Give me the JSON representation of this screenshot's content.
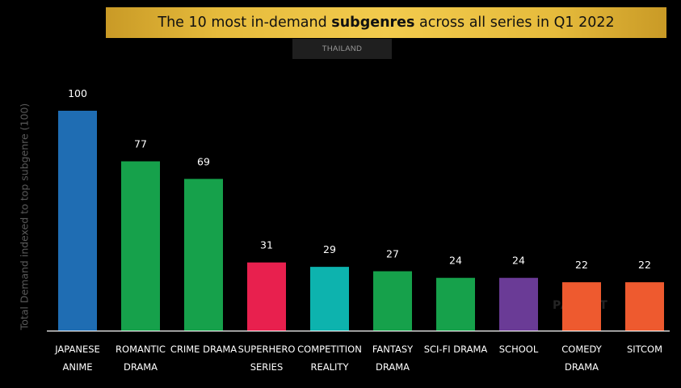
{
  "header": {
    "title_prefix": "The 10 most in-demand ",
    "title_bold": "subgenres",
    "title_suffix": " across all series in Q1 2022",
    "region": "THAILAND"
  },
  "watermark": "PARROT",
  "chart_data": {
    "type": "bar",
    "title": "The 10 most in-demand subgenres across all series in Q1 2022",
    "subtitle": "THAILAND",
    "xlabel": "",
    "ylabel": "Total Demand indexed to top subgenre (100)",
    "ylim": [
      0,
      100
    ],
    "grid": false,
    "categories": [
      [
        "JAPANESE",
        "ANIME"
      ],
      [
        "ROMANTIC",
        "DRAMA"
      ],
      [
        "CRIME DRAMA"
      ],
      [
        "SUPERHERO",
        "SERIES"
      ],
      [
        "COMPETITION",
        "REALITY"
      ],
      [
        "FANTASY",
        "DRAMA"
      ],
      [
        "SCI-FI DRAMA"
      ],
      [
        "SCHOOL"
      ],
      [
        "COMEDY",
        "DRAMA"
      ],
      [
        "SITCOM"
      ]
    ],
    "values": [
      100,
      77,
      69,
      31,
      29,
      27,
      24,
      24,
      22,
      22
    ],
    "colors": [
      "#1f6db3",
      "#16a14b",
      "#16a14b",
      "#e8204e",
      "#0db3ae",
      "#16a14b",
      "#16a14b",
      "#6a3b96",
      "#ee5a2f",
      "#ee5a2f"
    ]
  }
}
